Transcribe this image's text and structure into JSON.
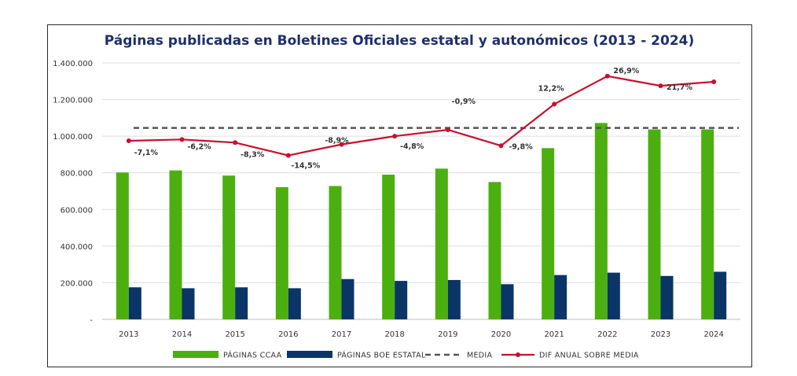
{
  "chart_data": {
    "type": "bar",
    "title": "Páginas publicadas en Boletines Oficiales estatal y autonómicos (2013 - 2024)",
    "categories": [
      "2013",
      "2014",
      "2015",
      "2016",
      "2017",
      "2018",
      "2019",
      "2020",
      "2021",
      "2022",
      "2023",
      "2024"
    ],
    "y_ticks": [
      "-",
      "200.000",
      "400.000",
      "600.000",
      "800.000",
      "1.000.000",
      "1.200.000",
      "1.400.000"
    ],
    "ylim": [
      0,
      1400000
    ],
    "grid": true,
    "series": [
      {
        "name": "PÁGINAS CCAA",
        "type": "bar",
        "color": "#4caf10",
        "values": [
          802000,
          813000,
          785000,
          722000,
          728000,
          790000,
          823000,
          750000,
          935000,
          1072000,
          1037000,
          1037000
        ]
      },
      {
        "name": "PÁGINAS BOE ESTATAL",
        "type": "bar",
        "color": "#0a3566",
        "values": [
          175000,
          170000,
          175000,
          170000,
          220000,
          210000,
          215000,
          192000,
          242000,
          255000,
          237000,
          260000
        ]
      },
      {
        "name": "MEDIA",
        "type": "line-dashed",
        "color": "#555555",
        "values": [
          1045000,
          1045000,
          1045000,
          1045000,
          1045000,
          1045000,
          1045000,
          1045000,
          1045000,
          1045000,
          1045000,
          1045000
        ]
      },
      {
        "name": "DIF ANUAL SOBRE MEDIA",
        "type": "line-marker",
        "color": "#c8102e",
        "values": [
          975000,
          982000,
          965000,
          895000,
          955000,
          1000000,
          1035000,
          948000,
          1175000,
          1328000,
          1275000,
          1297000
        ],
        "labels": [
          "-7,1%",
          "-6,2%",
          "-8,3%",
          "-14,5%",
          "-8,9%",
          "-4,8%",
          "-0,9%",
          "-9,8%",
          "12,2%",
          "26,9%",
          "21,7%",
          ""
        ]
      }
    ],
    "legend_position": "bottom"
  }
}
